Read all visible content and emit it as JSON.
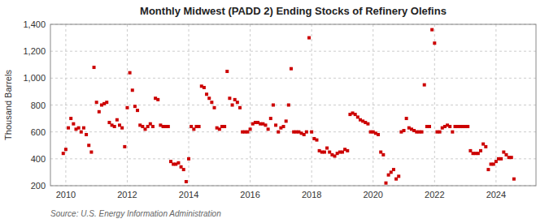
{
  "chart_data": {
    "type": "scatter",
    "title": "Monthly Midwest (PADD 2) Ending Stocks of Refinery Olefins",
    "ylabel": "Thousand Barrels",
    "annotations": [
      "Source: U.S. Energy Information Administration"
    ],
    "color": "#cc0000",
    "marker": "square",
    "grid": true,
    "xlim": [
      2009.5,
      2025.3
    ],
    "xticks": [
      2010,
      2012,
      2014,
      2016,
      2018,
      2020,
      2022,
      2024
    ],
    "ylim": [
      200,
      1400
    ],
    "yticks": [
      200,
      400,
      600,
      800,
      {
        "value": 1000,
        "label": "1,000"
      },
      {
        "value": 1200,
        "label": "1,200"
      },
      {
        "value": 1400,
        "label": "1,400"
      }
    ],
    "x": [
      2009.917,
      2010.0,
      2010.083,
      2010.167,
      2010.25,
      2010.333,
      2010.417,
      2010.5,
      2010.583,
      2010.667,
      2010.75,
      2010.833,
      2010.917,
      2011.0,
      2011.083,
      2011.167,
      2011.25,
      2011.333,
      2011.417,
      2011.5,
      2011.583,
      2011.667,
      2011.75,
      2011.833,
      2011.917,
      2012.0,
      2012.083,
      2012.167,
      2012.25,
      2012.333,
      2012.417,
      2012.5,
      2012.583,
      2012.667,
      2012.75,
      2012.833,
      2012.917,
      2013.0,
      2013.083,
      2013.167,
      2013.25,
      2013.333,
      2013.417,
      2013.5,
      2013.583,
      2013.667,
      2013.75,
      2013.833,
      2013.917,
      2014.0,
      2014.083,
      2014.167,
      2014.25,
      2014.333,
      2014.417,
      2014.5,
      2014.583,
      2014.667,
      2014.75,
      2014.833,
      2014.917,
      2015.0,
      2015.083,
      2015.167,
      2015.25,
      2015.333,
      2015.417,
      2015.5,
      2015.583,
      2015.667,
      2015.75,
      2015.833,
      2015.917,
      2016.0,
      2016.083,
      2016.167,
      2016.25,
      2016.333,
      2016.417,
      2016.5,
      2016.583,
      2016.667,
      2016.75,
      2016.833,
      2016.917,
      2017.0,
      2017.083,
      2017.167,
      2017.25,
      2017.333,
      2017.417,
      2017.5,
      2017.583,
      2017.667,
      2017.75,
      2017.833,
      2017.917,
      2018.0,
      2018.083,
      2018.167,
      2018.25,
      2018.333,
      2018.417,
      2018.5,
      2018.583,
      2018.667,
      2018.75,
      2018.833,
      2018.917,
      2019.0,
      2019.083,
      2019.167,
      2019.25,
      2019.333,
      2019.417,
      2019.5,
      2019.583,
      2019.667,
      2019.75,
      2019.833,
      2019.917,
      2020.0,
      2020.083,
      2020.167,
      2020.25,
      2020.333,
      2020.417,
      2020.5,
      2020.583,
      2020.667,
      2020.75,
      2020.833,
      2020.917,
      2021.0,
      2021.083,
      2021.167,
      2021.25,
      2021.333,
      2021.417,
      2021.5,
      2021.583,
      2021.667,
      2021.75,
      2021.833,
      2021.917,
      2022.0,
      2022.083,
      2022.167,
      2022.25,
      2022.333,
      2022.417,
      2022.5,
      2022.583,
      2022.667,
      2022.75,
      2022.833,
      2022.917,
      2023.0,
      2023.083,
      2023.167,
      2023.25,
      2023.333,
      2023.417,
      2023.5,
      2023.583,
      2023.667,
      2023.75,
      2023.833,
      2023.917,
      2024.0,
      2024.083,
      2024.167,
      2024.25,
      2024.333,
      2024.417,
      2024.5,
      2024.583
    ],
    "values": [
      440,
      470,
      630,
      700,
      660,
      620,
      630,
      600,
      630,
      580,
      500,
      450,
      1080,
      820,
      750,
      800,
      810,
      820,
      670,
      650,
      640,
      690,
      650,
      630,
      490,
      780,
      1040,
      910,
      790,
      760,
      650,
      640,
      620,
      640,
      660,
      640,
      850,
      840,
      650,
      640,
      640,
      640,
      380,
      360,
      360,
      370,
      340,
      320,
      230,
      400,
      640,
      620,
      640,
      640,
      940,
      930,
      880,
      850,
      820,
      780,
      630,
      620,
      640,
      640,
      1050,
      850,
      800,
      840,
      820,
      780,
      600,
      600,
      600,
      620,
      660,
      670,
      670,
      660,
      660,
      650,
      620,
      700,
      800,
      650,
      600,
      630,
      640,
      680,
      800,
      1070,
      600,
      600,
      600,
      590,
      580,
      600,
      1300,
      600,
      550,
      540,
      460,
      450,
      450,
      480,
      450,
      430,
      420,
      440,
      450,
      450,
      470,
      460,
      730,
      740,
      730,
      710,
      690,
      680,
      670,
      660,
      600,
      600,
      590,
      580,
      450,
      430,
      220,
      280,
      300,
      320,
      250,
      270,
      600,
      610,
      700,
      630,
      620,
      610,
      600,
      600,
      600,
      950,
      640,
      640,
      1360,
      1260,
      600,
      600,
      630,
      640,
      650,
      640,
      600,
      640,
      640,
      640,
      640,
      640,
      640,
      460,
      440,
      440,
      440,
      460,
      510,
      490,
      320,
      360,
      360,
      380,
      400,
      400,
      450,
      430,
      410,
      410,
      250
    ]
  }
}
